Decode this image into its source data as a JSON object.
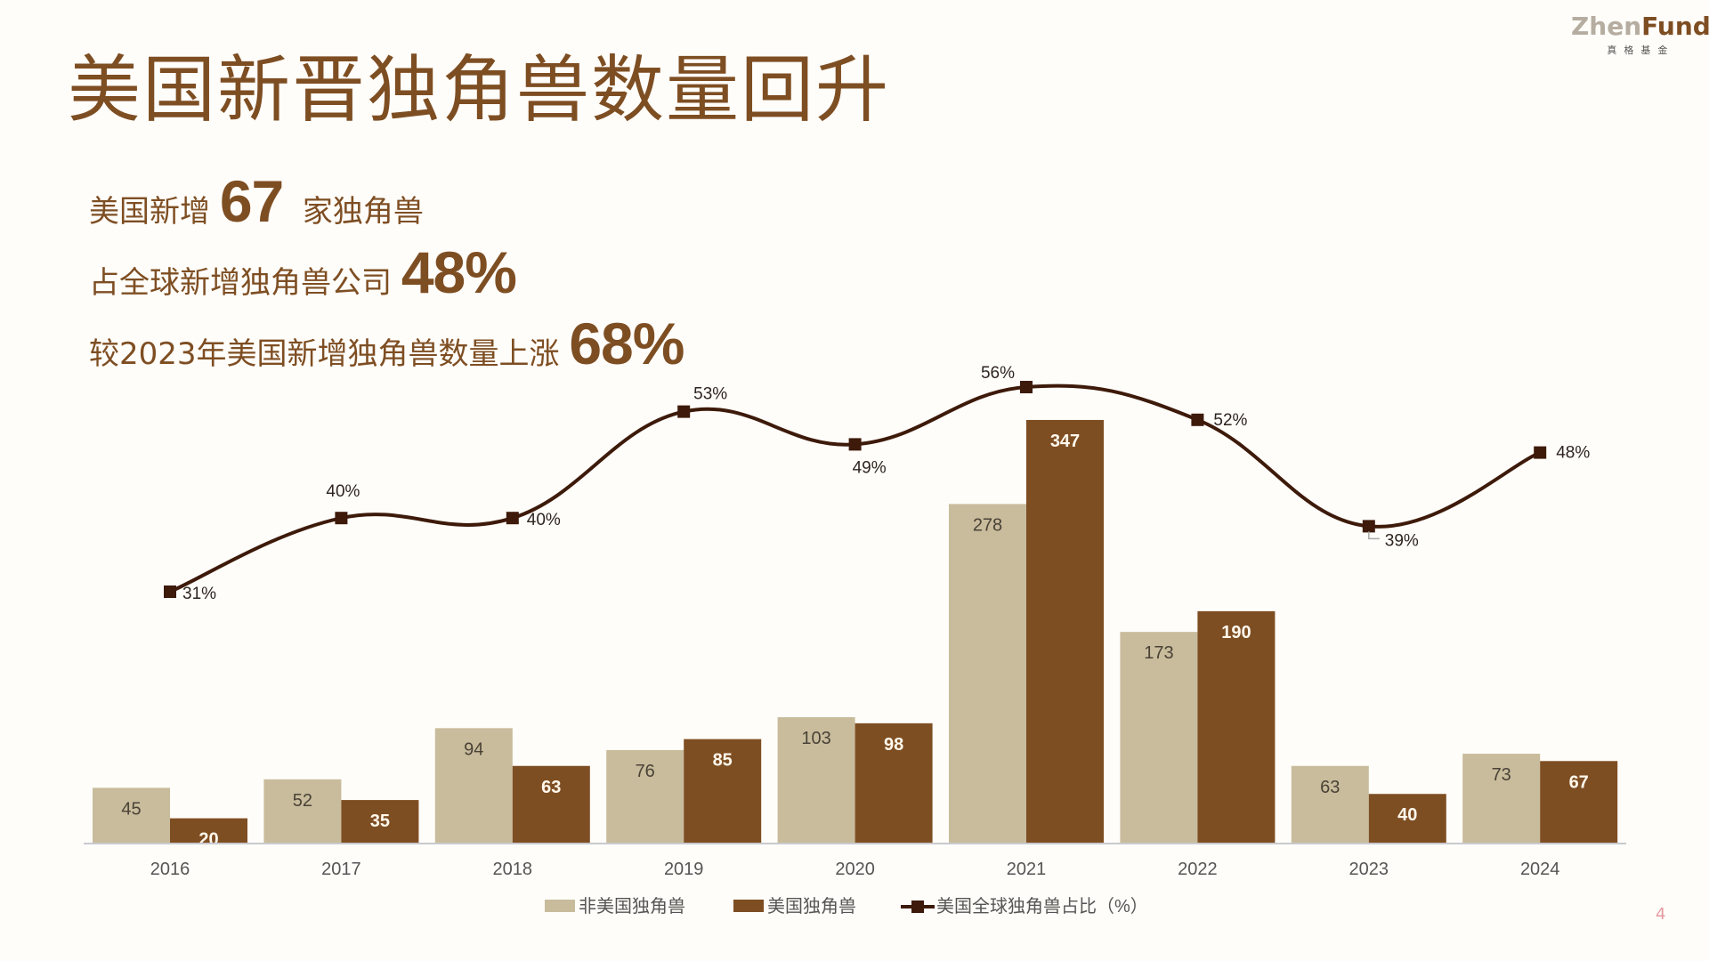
{
  "logo": {
    "brand_part1": "Zhen",
    "brand_part2": "Fund",
    "subtitle": "真格基金"
  },
  "title": "美国新晋独角兽数量回升",
  "highlights": [
    {
      "prefix": "美国新增 ",
      "value": "67",
      "suffix": "  家独角兽"
    },
    {
      "prefix": "占全球新增独角兽公司 ",
      "value": "48%",
      "suffix": ""
    },
    {
      "prefix": "较2023年美国新增独角兽数量上涨 ",
      "value": "68%",
      "suffix": ""
    }
  ],
  "page_number": "4",
  "colors": {
    "non_us": "#c8bc9c",
    "us": "#7e4e23",
    "line": "#3d1a0a",
    "title": "#7e4e23"
  },
  "chart_data": {
    "type": "bar",
    "title": "",
    "xlabel": "",
    "ylabel": "",
    "categories": [
      "2016",
      "2017",
      "2018",
      "2019",
      "2020",
      "2021",
      "2022",
      "2023",
      "2024"
    ],
    "series": [
      {
        "name": "非美国独角兽",
        "type": "bar",
        "values": [
          45,
          52,
          94,
          76,
          103,
          278,
          173,
          63,
          73
        ]
      },
      {
        "name": "美国独角兽",
        "type": "bar",
        "values": [
          20,
          35,
          63,
          85,
          98,
          347,
          190,
          40,
          67
        ]
      },
      {
        "name": "美国全球独角兽占比（%）",
        "type": "line",
        "values": [
          31,
          40,
          40,
          53,
          49,
          56,
          52,
          39,
          48
        ],
        "labels": [
          "31%",
          "40%",
          "40%",
          "53%",
          "49%",
          "56%",
          "52%",
          "39%",
          "48%"
        ]
      }
    ],
    "legend": [
      "非美国独角兽",
      "美国独角兽",
      "美国全球独角兽占比（%）"
    ],
    "legend_position": "bottom",
    "grid": false
  }
}
